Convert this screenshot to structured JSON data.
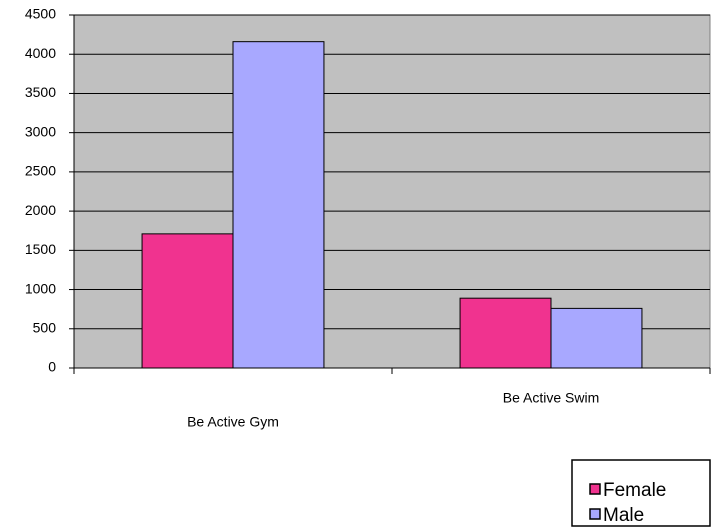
{
  "chart_data": {
    "type": "bar",
    "categories": [
      "Be Active Gym",
      "Be Active Swim"
    ],
    "series": [
      {
        "name": "Female",
        "color": "#f0338f",
        "values": [
          1710,
          890
        ]
      },
      {
        "name": "Male",
        "color": "#a8a8ff",
        "values": [
          4160,
          760
        ]
      }
    ],
    "ylim": [
      0,
      4500
    ],
    "yticks": [
      0,
      500,
      1000,
      1500,
      2000,
      2500,
      3000,
      3500,
      4000,
      4500
    ],
    "grid": true,
    "legend": "bottom-right"
  }
}
